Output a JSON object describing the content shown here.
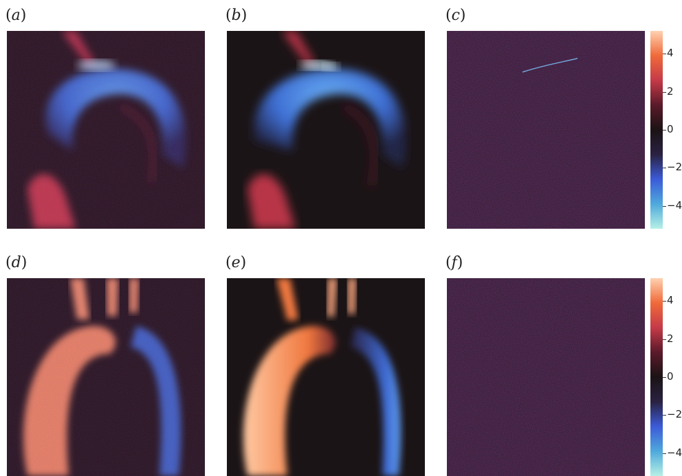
{
  "figure": {
    "panels": [
      {
        "id": "a",
        "label": "a"
      },
      {
        "id": "b",
        "label": "b"
      },
      {
        "id": "c",
        "label": "c"
      },
      {
        "id": "d",
        "label": "d"
      },
      {
        "id": "e",
        "label": "e"
      },
      {
        "id": "f",
        "label": "f"
      }
    ],
    "colorbar": {
      "ticks": [
        "4",
        "2",
        "0",
        "−2",
        "−4"
      ],
      "range": [
        -5.2,
        5.2
      ],
      "colors": [
        "#b6f0e6",
        "#4fa9dc",
        "#3b5bd8",
        "#2a2242",
        "#1b1315",
        "#5a1a2a",
        "#c53a48",
        "#f06a3a",
        "#ffd1b0"
      ]
    }
  }
}
